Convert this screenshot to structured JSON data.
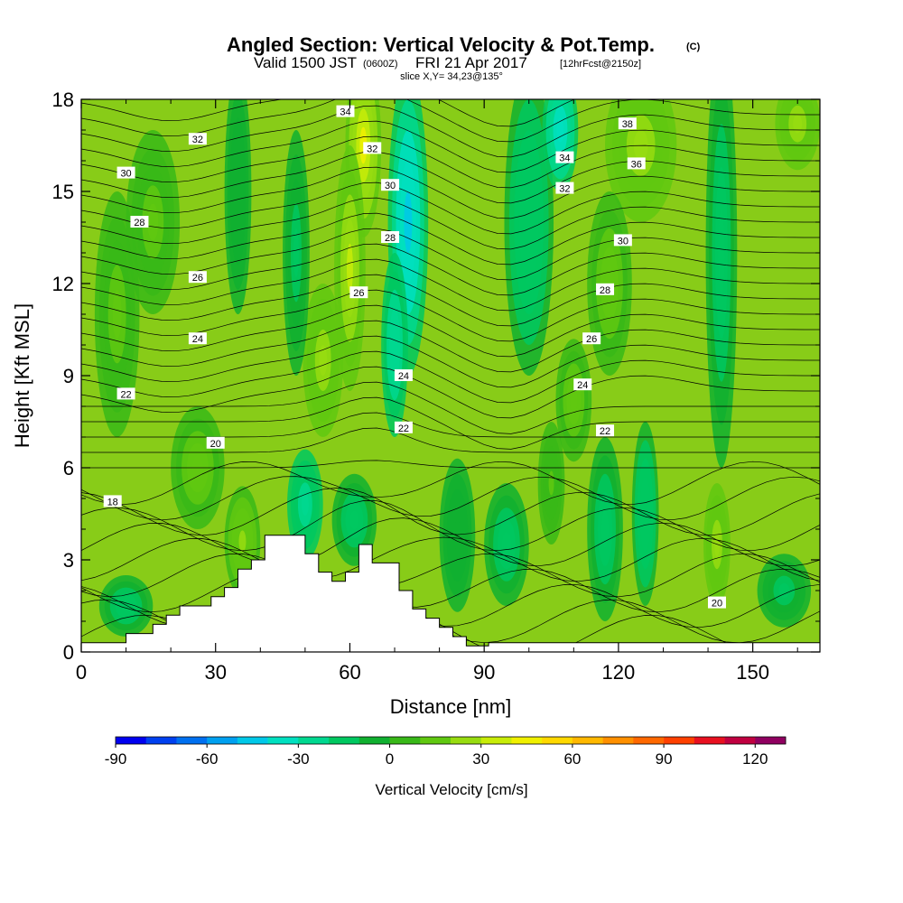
{
  "title": {
    "main": "Angled Section: Vertical Velocity & Pot.Temp.",
    "unit": "(C)",
    "valid_prefix": "Valid 1500 JST",
    "utc": "(0600Z)",
    "date": "FRI 21 Apr 2017",
    "forecast": "[12hrFcst@2150z]",
    "slice": "slice X,Y= 34,23@135°"
  },
  "chart_data": {
    "type": "heatmap",
    "xlabel": "Distance [nm]",
    "ylabel": "Height [Kft MSL]",
    "xlim": [
      0,
      165
    ],
    "ylim": [
      0,
      18
    ],
    "x_ticks": [
      0,
      30,
      60,
      90,
      120,
      150
    ],
    "y_ticks": [
      0,
      3,
      6,
      9,
      12,
      15,
      18
    ],
    "colorbar": {
      "label": "Vertical Velocity [cm/s]",
      "min": -90,
      "max": 130,
      "step": 10,
      "tick_labels": [
        -90,
        -60,
        -30,
        0,
        30,
        60,
        90,
        120
      ],
      "colors": [
        "#0000f0",
        "#0040f0",
        "#0070f0",
        "#00a0f0",
        "#00c8e8",
        "#00e0c0",
        "#00d890",
        "#00c860",
        "#10b030",
        "#38b818",
        "#60c810",
        "#98dc10",
        "#c8ec08",
        "#f0f000",
        "#ffd800",
        "#ffb800",
        "#ff9000",
        "#ff6800",
        "#ff4000",
        "#e81020",
        "#c00040",
        "#900060"
      ]
    },
    "terrain": {
      "x": [
        0,
        10,
        10,
        16,
        16,
        19,
        19,
        22,
        22,
        29,
        29,
        32,
        32,
        35,
        35,
        38,
        38,
        41,
        41,
        50,
        50,
        53,
        53,
        56,
        56,
        59,
        59,
        62,
        62,
        65,
        65,
        71,
        71,
        74,
        74,
        77,
        77,
        80,
        80,
        83,
        83,
        86,
        86,
        91,
        91,
        165
      ],
      "y": [
        0.3,
        0.3,
        0.6,
        0.6,
        0.9,
        0.9,
        1.2,
        1.2,
        1.5,
        1.5,
        1.8,
        1.8,
        2.1,
        2.1,
        2.7,
        2.7,
        3.0,
        3.0,
        3.8,
        3.8,
        3.2,
        3.2,
        2.6,
        2.6,
        2.3,
        2.3,
        2.6,
        2.6,
        3.5,
        3.5,
        2.9,
        2.9,
        2.0,
        2.0,
        1.4,
        1.4,
        1.1,
        1.1,
        0.8,
        0.8,
        0.5,
        0.5,
        0.2,
        0.2,
        0.3,
        0.3
      ]
    },
    "velocity_cells": [
      {
        "x": 63,
        "y": 16.5,
        "sx": 4,
        "sy": 3.0,
        "w": 40
      },
      {
        "x": 60,
        "y": 12.5,
        "sx": 3.5,
        "sy": 4.0,
        "w": 30
      },
      {
        "x": 54,
        "y": 9.5,
        "sx": 4.5,
        "sy": 2.5,
        "w": 28
      },
      {
        "x": 48,
        "y": 13,
        "sx": 3,
        "sy": 4,
        "w": -14
      },
      {
        "x": 73,
        "y": 14,
        "sx": 4.5,
        "sy": 5.0,
        "w": -45
      },
      {
        "x": 70,
        "y": 10,
        "sx": 3,
        "sy": 3.0,
        "w": -30
      },
      {
        "x": 100,
        "y": 14,
        "sx": 5.5,
        "sy": 5.0,
        "w": -20
      },
      {
        "x": 107,
        "y": 17,
        "sx": 4,
        "sy": 2.0,
        "w": -38
      },
      {
        "x": 125,
        "y": 16.5,
        "sx": 8,
        "sy": 2.5,
        "w": 26
      },
      {
        "x": 118,
        "y": 12,
        "sx": 5,
        "sy": 3.0,
        "w": 15
      },
      {
        "x": 110,
        "y": 8.2,
        "sx": 4,
        "sy": 2.0,
        "w": 18
      },
      {
        "x": 143,
        "y": 13,
        "sx": 3.5,
        "sy": 7.0,
        "w": -15
      },
      {
        "x": 160,
        "y": 17.2,
        "sx": 5,
        "sy": 1.5,
        "w": 28
      },
      {
        "x": 16,
        "y": 14,
        "sx": 6,
        "sy": 3,
        "w": 14
      },
      {
        "x": 35,
        "y": 15,
        "sx": 3,
        "sy": 4,
        "w": -10
      },
      {
        "x": 26,
        "y": 6,
        "sx": 6,
        "sy": 2,
        "w": 18
      },
      {
        "x": 36,
        "y": 3.6,
        "sx": 4,
        "sy": 1.8,
        "w": 22
      },
      {
        "x": 50,
        "y": 4.8,
        "sx": 4,
        "sy": 1.8,
        "w": -26
      },
      {
        "x": 61,
        "y": 4.3,
        "sx": 5,
        "sy": 1.5,
        "w": -18
      },
      {
        "x": 84,
        "y": 3.8,
        "sx": 4,
        "sy": 2.5,
        "w": -10
      },
      {
        "x": 95,
        "y": 3.5,
        "sx": 5,
        "sy": 2.0,
        "w": -18
      },
      {
        "x": 105,
        "y": 5.5,
        "sx": 3,
        "sy": 2.0,
        "w": 10
      },
      {
        "x": 117,
        "y": 4,
        "sx": 4,
        "sy": 3.0,
        "w": -16
      },
      {
        "x": 126,
        "y": 4.5,
        "sx": 3,
        "sy": 3.0,
        "w": -20
      },
      {
        "x": 142,
        "y": 3.5,
        "sx": 3,
        "sy": 2.0,
        "w": 28
      },
      {
        "x": 10,
        "y": 1.5,
        "sx": 6,
        "sy": 1.0,
        "w": -15
      },
      {
        "x": 157,
        "y": 2.0,
        "sx": 6,
        "sy": 1.2,
        "w": -12
      },
      {
        "x": 8,
        "y": 11,
        "sx": 5,
        "sy": 4,
        "w": 14
      }
    ],
    "theta_contours": [
      {
        "value": 18,
        "label_x": 7,
        "label_y": 4.9
      },
      {
        "value": 20,
        "label_x": 30,
        "label_y": 6.8
      },
      {
        "value": 22,
        "label_x": 10,
        "label_y": 8.4
      },
      {
        "value": 22,
        "label_x": 72,
        "label_y": 7.3
      },
      {
        "value": 22,
        "label_x": 117,
        "label_y": 7.2
      },
      {
        "value": 24,
        "label_x": 26,
        "label_y": 10.2
      },
      {
        "value": 24,
        "label_x": 72,
        "label_y": 9.0
      },
      {
        "value": 24,
        "label_x": 112,
        "label_y": 8.7
      },
      {
        "value": 26,
        "label_x": 26,
        "label_y": 12.2
      },
      {
        "value": 26,
        "label_x": 62,
        "label_y": 11.7
      },
      {
        "value": 26,
        "label_x": 114,
        "label_y": 10.2
      },
      {
        "value": 28,
        "label_x": 13,
        "label_y": 14.0
      },
      {
        "value": 28,
        "label_x": 69,
        "label_y": 13.5
      },
      {
        "value": 28,
        "label_x": 117,
        "label_y": 11.8
      },
      {
        "value": 30,
        "label_x": 10,
        "label_y": 15.6
      },
      {
        "value": 30,
        "label_x": 69,
        "label_y": 15.2
      },
      {
        "value": 30,
        "label_x": 121,
        "label_y": 13.4
      },
      {
        "value": 32,
        "label_x": 26,
        "label_y": 16.7
      },
      {
        "value": 32,
        "label_x": 65,
        "label_y": 16.4
      },
      {
        "value": 32,
        "label_x": 108,
        "label_y": 15.1
      },
      {
        "value": 34,
        "label_x": 59,
        "label_y": 17.6
      },
      {
        "value": 34,
        "label_x": 108,
        "label_y": 16.1
      },
      {
        "value": 36,
        "label_x": 124,
        "label_y": 15.9
      },
      {
        "value": 38,
        "label_x": 122,
        "label_y": 17.2
      },
      {
        "value": 20,
        "label_x": 142,
        "label_y": 1.6
      }
    ]
  }
}
